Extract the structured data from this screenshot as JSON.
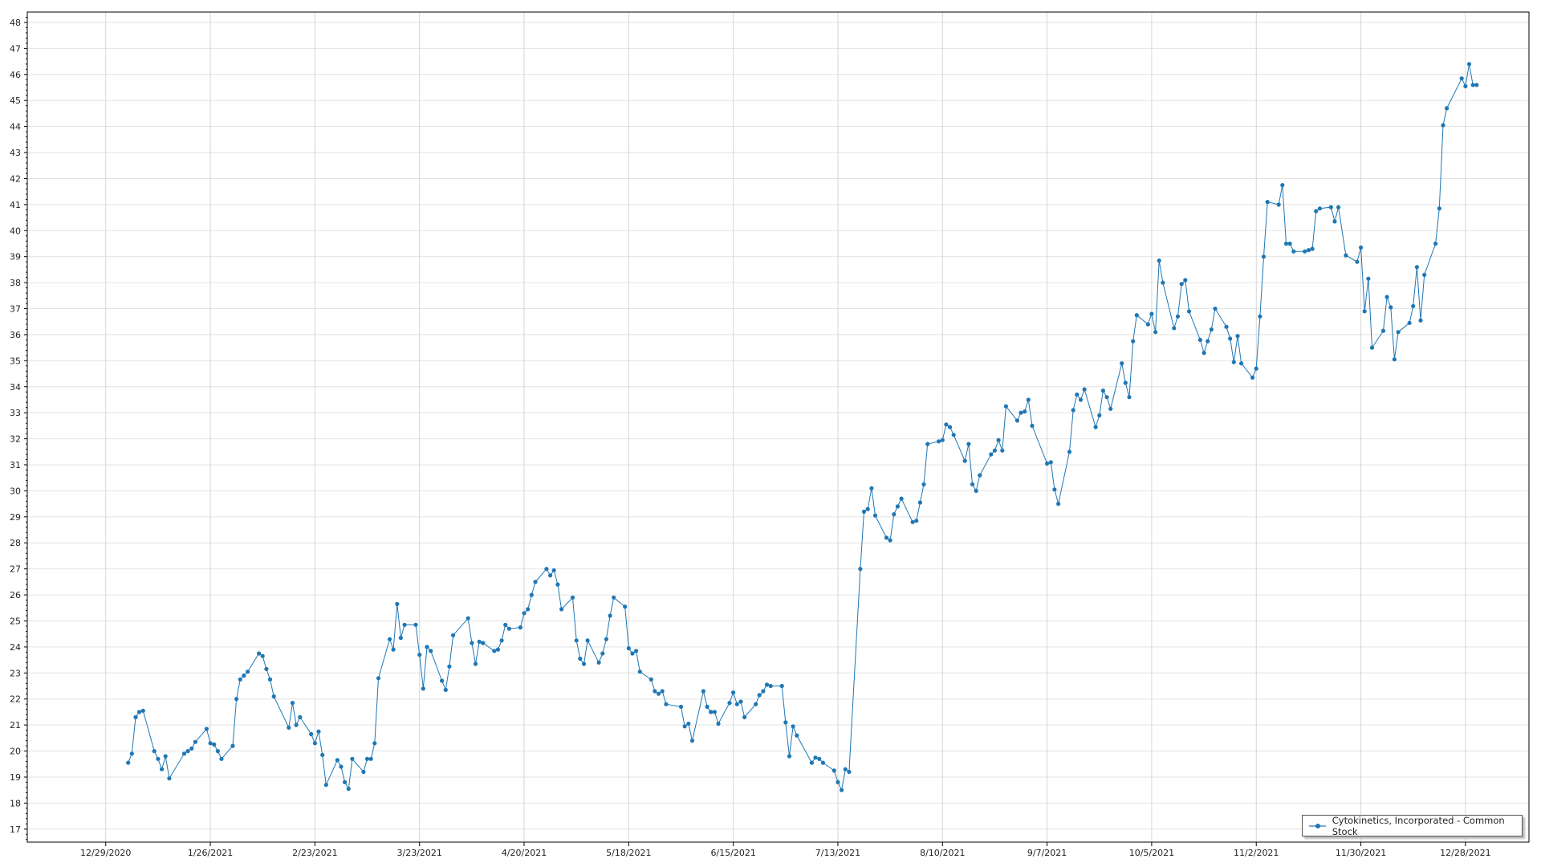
{
  "chart_data": {
    "type": "line",
    "title": "",
    "xlabel": "",
    "ylabel": "",
    "ylim": [
      16.5,
      48.4
    ],
    "yticks": [
      17,
      18,
      19,
      20,
      21,
      22,
      23,
      24,
      25,
      26,
      27,
      28,
      29,
      30,
      31,
      32,
      33,
      34,
      35,
      36,
      37,
      38,
      39,
      40,
      41,
      42,
      43,
      44,
      45,
      46,
      47,
      48
    ],
    "xlim": [
      "12/8/2020",
      "1/14/2022"
    ],
    "xticks": [
      "12/29/2020",
      "1/26/2021",
      "2/23/2021",
      "3/23/2021",
      "4/20/2021",
      "5/18/2021",
      "6/15/2021",
      "7/13/2021",
      "8/10/2021",
      "9/7/2021",
      "10/5/2021",
      "11/2/2021",
      "11/30/2021",
      "12/28/2021"
    ],
    "grid": true,
    "legend_position": "bottom-right",
    "colors": {
      "series": "#1f77b4",
      "grid": "#e2e2e2",
      "axis": "#000000"
    },
    "series": [
      {
        "name": "Cytokinetics, Incorporated - Common Stock",
        "marker": "circle",
        "points": [
          [
            "1/4/2021",
            19.55
          ],
          [
            "1/5/2021",
            19.9
          ],
          [
            "1/6/2021",
            21.3
          ],
          [
            "1/7/2021",
            21.5
          ],
          [
            "1/8/2021",
            21.55
          ],
          [
            "1/11/2021",
            20.0
          ],
          [
            "1/12/2021",
            19.7
          ],
          [
            "1/13/2021",
            19.3
          ],
          [
            "1/14/2021",
            19.8
          ],
          [
            "1/15/2021",
            18.95
          ],
          [
            "1/19/2021",
            19.9
          ],
          [
            "1/20/2021",
            20.0
          ],
          [
            "1/21/2021",
            20.1
          ],
          [
            "1/22/2021",
            20.35
          ],
          [
            "1/25/2021",
            20.85
          ],
          [
            "1/26/2021",
            20.3
          ],
          [
            "1/27/2021",
            20.25
          ],
          [
            "1/28/2021",
            20.0
          ],
          [
            "1/29/2021",
            19.7
          ],
          [
            "2/1/2021",
            20.2
          ],
          [
            "2/2/2021",
            22.0
          ],
          [
            "2/3/2021",
            22.75
          ],
          [
            "2/4/2021",
            22.9
          ],
          [
            "2/5/2021",
            23.05
          ],
          [
            "2/8/2021",
            23.75
          ],
          [
            "2/9/2021",
            23.65
          ],
          [
            "2/10/2021",
            23.15
          ],
          [
            "2/11/2021",
            22.75
          ],
          [
            "2/12/2021",
            22.1
          ],
          [
            "2/16/2021",
            20.9
          ],
          [
            "2/17/2021",
            21.85
          ],
          [
            "2/18/2021",
            21.0
          ],
          [
            "2/19/2021",
            21.3
          ],
          [
            "2/22/2021",
            20.65
          ],
          [
            "2/23/2021",
            20.3
          ],
          [
            "2/24/2021",
            20.75
          ],
          [
            "2/25/2021",
            19.85
          ],
          [
            "2/26/2021",
            18.7
          ],
          [
            "3/1/2021",
            19.65
          ],
          [
            "3/2/2021",
            19.4
          ],
          [
            "3/3/2021",
            18.8
          ],
          [
            "3/4/2021",
            18.55
          ],
          [
            "3/5/2021",
            19.7
          ],
          [
            "3/8/2021",
            19.2
          ],
          [
            "3/9/2021",
            19.7
          ],
          [
            "3/10/2021",
            19.7
          ],
          [
            "3/11/2021",
            20.3
          ],
          [
            "3/12/2021",
            22.8
          ],
          [
            "3/15/2021",
            24.3
          ],
          [
            "3/16/2021",
            23.9
          ],
          [
            "3/17/2021",
            25.65
          ],
          [
            "3/18/2021",
            24.35
          ],
          [
            "3/19/2021",
            24.85
          ],
          [
            "3/22/2021",
            24.85
          ],
          [
            "3/23/2021",
            23.7
          ],
          [
            "3/24/2021",
            22.4
          ],
          [
            "3/25/2021",
            24.0
          ],
          [
            "3/26/2021",
            23.85
          ],
          [
            "3/29/2021",
            22.7
          ],
          [
            "3/30/2021",
            22.35
          ],
          [
            "3/31/2021",
            23.25
          ],
          [
            "4/1/2021",
            24.45
          ],
          [
            "4/5/2021",
            25.1
          ],
          [
            "4/6/2021",
            24.15
          ],
          [
            "4/7/2021",
            23.35
          ],
          [
            "4/8/2021",
            24.2
          ],
          [
            "4/9/2021",
            24.15
          ],
          [
            "4/12/2021",
            23.85
          ],
          [
            "4/13/2021",
            23.9
          ],
          [
            "4/14/2021",
            24.25
          ],
          [
            "4/15/2021",
            24.85
          ],
          [
            "4/16/2021",
            24.7
          ],
          [
            "4/19/2021",
            24.75
          ],
          [
            "4/20/2021",
            25.3
          ],
          [
            "4/21/2021",
            25.45
          ],
          [
            "4/22/2021",
            26.0
          ],
          [
            "4/23/2021",
            26.5
          ],
          [
            "4/26/2021",
            27.0
          ],
          [
            "4/27/2021",
            26.75
          ],
          [
            "4/28/2021",
            26.95
          ],
          [
            "4/29/2021",
            26.4
          ],
          [
            "4/30/2021",
            25.45
          ],
          [
            "5/3/2021",
            25.9
          ],
          [
            "5/4/2021",
            24.25
          ],
          [
            "5/5/2021",
            23.55
          ],
          [
            "5/6/2021",
            23.35
          ],
          [
            "5/7/2021",
            24.25
          ],
          [
            "5/10/2021",
            23.4
          ],
          [
            "5/11/2021",
            23.75
          ],
          [
            "5/12/2021",
            24.3
          ],
          [
            "5/13/2021",
            25.2
          ],
          [
            "5/14/2021",
            25.9
          ],
          [
            "5/17/2021",
            25.55
          ],
          [
            "5/18/2021",
            23.95
          ],
          [
            "5/19/2021",
            23.75
          ],
          [
            "5/20/2021",
            23.85
          ],
          [
            "5/21/2021",
            23.05
          ],
          [
            "5/24/2021",
            22.75
          ],
          [
            "5/25/2021",
            22.3
          ],
          [
            "5/26/2021",
            22.2
          ],
          [
            "5/27/2021",
            22.3
          ],
          [
            "5/28/2021",
            21.8
          ],
          [
            "6/1/2021",
            21.7
          ],
          [
            "6/2/2021",
            20.95
          ],
          [
            "6/3/2021",
            21.05
          ],
          [
            "6/4/2021",
            20.4
          ],
          [
            "6/7/2021",
            22.3
          ],
          [
            "6/8/2021",
            21.7
          ],
          [
            "6/9/2021",
            21.5
          ],
          [
            "6/10/2021",
            21.5
          ],
          [
            "6/11/2021",
            21.05
          ],
          [
            "6/14/2021",
            21.85
          ],
          [
            "6/15/2021",
            22.25
          ],
          [
            "6/16/2021",
            21.8
          ],
          [
            "6/17/2021",
            21.9
          ],
          [
            "6/18/2021",
            21.3
          ],
          [
            "6/21/2021",
            21.8
          ],
          [
            "6/22/2021",
            22.15
          ],
          [
            "6/23/2021",
            22.3
          ],
          [
            "6/24/2021",
            22.55
          ],
          [
            "6/25/2021",
            22.5
          ],
          [
            "6/28/2021",
            22.5
          ],
          [
            "6/29/2021",
            21.1
          ],
          [
            "6/30/2021",
            19.8
          ],
          [
            "7/1/2021",
            20.95
          ],
          [
            "7/2/2021",
            20.6
          ],
          [
            "7/6/2021",
            19.55
          ],
          [
            "7/7/2021",
            19.75
          ],
          [
            "7/8/2021",
            19.7
          ],
          [
            "7/9/2021",
            19.55
          ],
          [
            "7/12/2021",
            19.25
          ],
          [
            "7/13/2021",
            18.8
          ],
          [
            "7/14/2021",
            18.5
          ],
          [
            "7/15/2021",
            19.3
          ],
          [
            "7/16/2021",
            19.2
          ],
          [
            "7/19/2021",
            27.0
          ],
          [
            "7/20/2021",
            29.2
          ],
          [
            "7/21/2021",
            29.3
          ],
          [
            "7/22/2021",
            30.1
          ],
          [
            "7/23/2021",
            29.05
          ],
          [
            "7/26/2021",
            28.2
          ],
          [
            "7/27/2021",
            28.1
          ],
          [
            "7/28/2021",
            29.1
          ],
          [
            "7/29/2021",
            29.4
          ],
          [
            "7/30/2021",
            29.7
          ],
          [
            "8/2/2021",
            28.8
          ],
          [
            "8/3/2021",
            28.85
          ],
          [
            "8/4/2021",
            29.55
          ],
          [
            "8/5/2021",
            30.25
          ],
          [
            "8/6/2021",
            31.8
          ],
          [
            "8/9/2021",
            31.9
          ],
          [
            "8/10/2021",
            31.95
          ],
          [
            "8/11/2021",
            32.55
          ],
          [
            "8/12/2021",
            32.45
          ],
          [
            "8/13/2021",
            32.15
          ],
          [
            "8/16/2021",
            31.15
          ],
          [
            "8/17/2021",
            31.8
          ],
          [
            "8/18/2021",
            30.25
          ],
          [
            "8/19/2021",
            30.0
          ],
          [
            "8/20/2021",
            30.6
          ],
          [
            "8/23/2021",
            31.4
          ],
          [
            "8/24/2021",
            31.55
          ],
          [
            "8/25/2021",
            31.95
          ],
          [
            "8/26/2021",
            31.55
          ],
          [
            "8/27/2021",
            33.25
          ],
          [
            "8/30/2021",
            32.7
          ],
          [
            "8/31/2021",
            33.0
          ],
          [
            "9/1/2021",
            33.05
          ],
          [
            "9/2/2021",
            33.5
          ],
          [
            "9/3/2021",
            32.5
          ],
          [
            "9/7/2021",
            31.05
          ],
          [
            "9/8/2021",
            31.1
          ],
          [
            "9/9/2021",
            30.05
          ],
          [
            "9/10/2021",
            29.5
          ],
          [
            "9/13/2021",
            31.5
          ],
          [
            "9/14/2021",
            33.1
          ],
          [
            "9/15/2021",
            33.7
          ],
          [
            "9/16/2021",
            33.5
          ],
          [
            "9/17/2021",
            33.9
          ],
          [
            "9/20/2021",
            32.45
          ],
          [
            "9/21/2021",
            32.9
          ],
          [
            "9/22/2021",
            33.85
          ],
          [
            "9/23/2021",
            33.6
          ],
          [
            "9/24/2021",
            33.15
          ],
          [
            "9/27/2021",
            34.9
          ],
          [
            "9/28/2021",
            34.15
          ],
          [
            "9/29/2021",
            33.6
          ],
          [
            "9/30/2021",
            35.75
          ],
          [
            "10/1/2021",
            36.75
          ],
          [
            "10/4/2021",
            36.4
          ],
          [
            "10/5/2021",
            36.8
          ],
          [
            "10/6/2021",
            36.1
          ],
          [
            "10/7/2021",
            38.85
          ],
          [
            "10/8/2021",
            38.0
          ],
          [
            "10/11/2021",
            36.25
          ],
          [
            "10/12/2021",
            36.7
          ],
          [
            "10/13/2021",
            37.95
          ],
          [
            "10/14/2021",
            38.1
          ],
          [
            "10/15/2021",
            36.9
          ],
          [
            "10/18/2021",
            35.8
          ],
          [
            "10/19/2021",
            35.3
          ],
          [
            "10/20/2021",
            35.75
          ],
          [
            "10/21/2021",
            36.2
          ],
          [
            "10/22/2021",
            37.0
          ],
          [
            "10/25/2021",
            36.3
          ],
          [
            "10/26/2021",
            35.85
          ],
          [
            "10/27/2021",
            34.95
          ],
          [
            "10/28/2021",
            35.95
          ],
          [
            "10/29/2021",
            34.9
          ],
          [
            "11/1/2021",
            34.35
          ],
          [
            "11/2/2021",
            34.7
          ],
          [
            "11/3/2021",
            36.7
          ],
          [
            "11/4/2021",
            39.0
          ],
          [
            "11/5/2021",
            41.1
          ],
          [
            "11/8/2021",
            41.0
          ],
          [
            "11/9/2021",
            41.75
          ],
          [
            "11/10/2021",
            39.5
          ],
          [
            "11/11/2021",
            39.5
          ],
          [
            "11/12/2021",
            39.2
          ],
          [
            "11/15/2021",
            39.2
          ],
          [
            "11/16/2021",
            39.25
          ],
          [
            "11/17/2021",
            39.3
          ],
          [
            "11/18/2021",
            40.75
          ],
          [
            "11/19/2021",
            40.85
          ],
          [
            "11/22/2021",
            40.9
          ],
          [
            "11/23/2021",
            40.35
          ],
          [
            "11/24/2021",
            40.9
          ],
          [
            "11/26/2021",
            39.05
          ],
          [
            "11/29/2021",
            38.8
          ],
          [
            "11/30/2021",
            39.35
          ],
          [
            "12/1/2021",
            36.9
          ],
          [
            "12/2/2021",
            38.15
          ],
          [
            "12/3/2021",
            35.5
          ],
          [
            "12/6/2021",
            36.15
          ],
          [
            "12/7/2021",
            37.45
          ],
          [
            "12/8/2021",
            37.05
          ],
          [
            "12/9/2021",
            35.05
          ],
          [
            "12/10/2021",
            36.1
          ],
          [
            "12/13/2021",
            36.45
          ],
          [
            "12/14/2021",
            37.1
          ],
          [
            "12/15/2021",
            38.6
          ],
          [
            "12/16/2021",
            36.55
          ],
          [
            "12/17/2021",
            38.3
          ],
          [
            "12/20/2021",
            39.5
          ],
          [
            "12/21/2021",
            40.85
          ],
          [
            "12/22/2021",
            44.05
          ],
          [
            "12/23/2021",
            44.7
          ],
          [
            "12/27/2021",
            45.85
          ],
          [
            "12/28/2021",
            45.55
          ],
          [
            "12/29/2021",
            46.4
          ],
          [
            "12/30/2021",
            45.6
          ],
          [
            "12/31/2021",
            45.6
          ]
        ]
      }
    ]
  },
  "legend": {
    "label": "Cytokinetics, Incorporated - Common Stock"
  }
}
